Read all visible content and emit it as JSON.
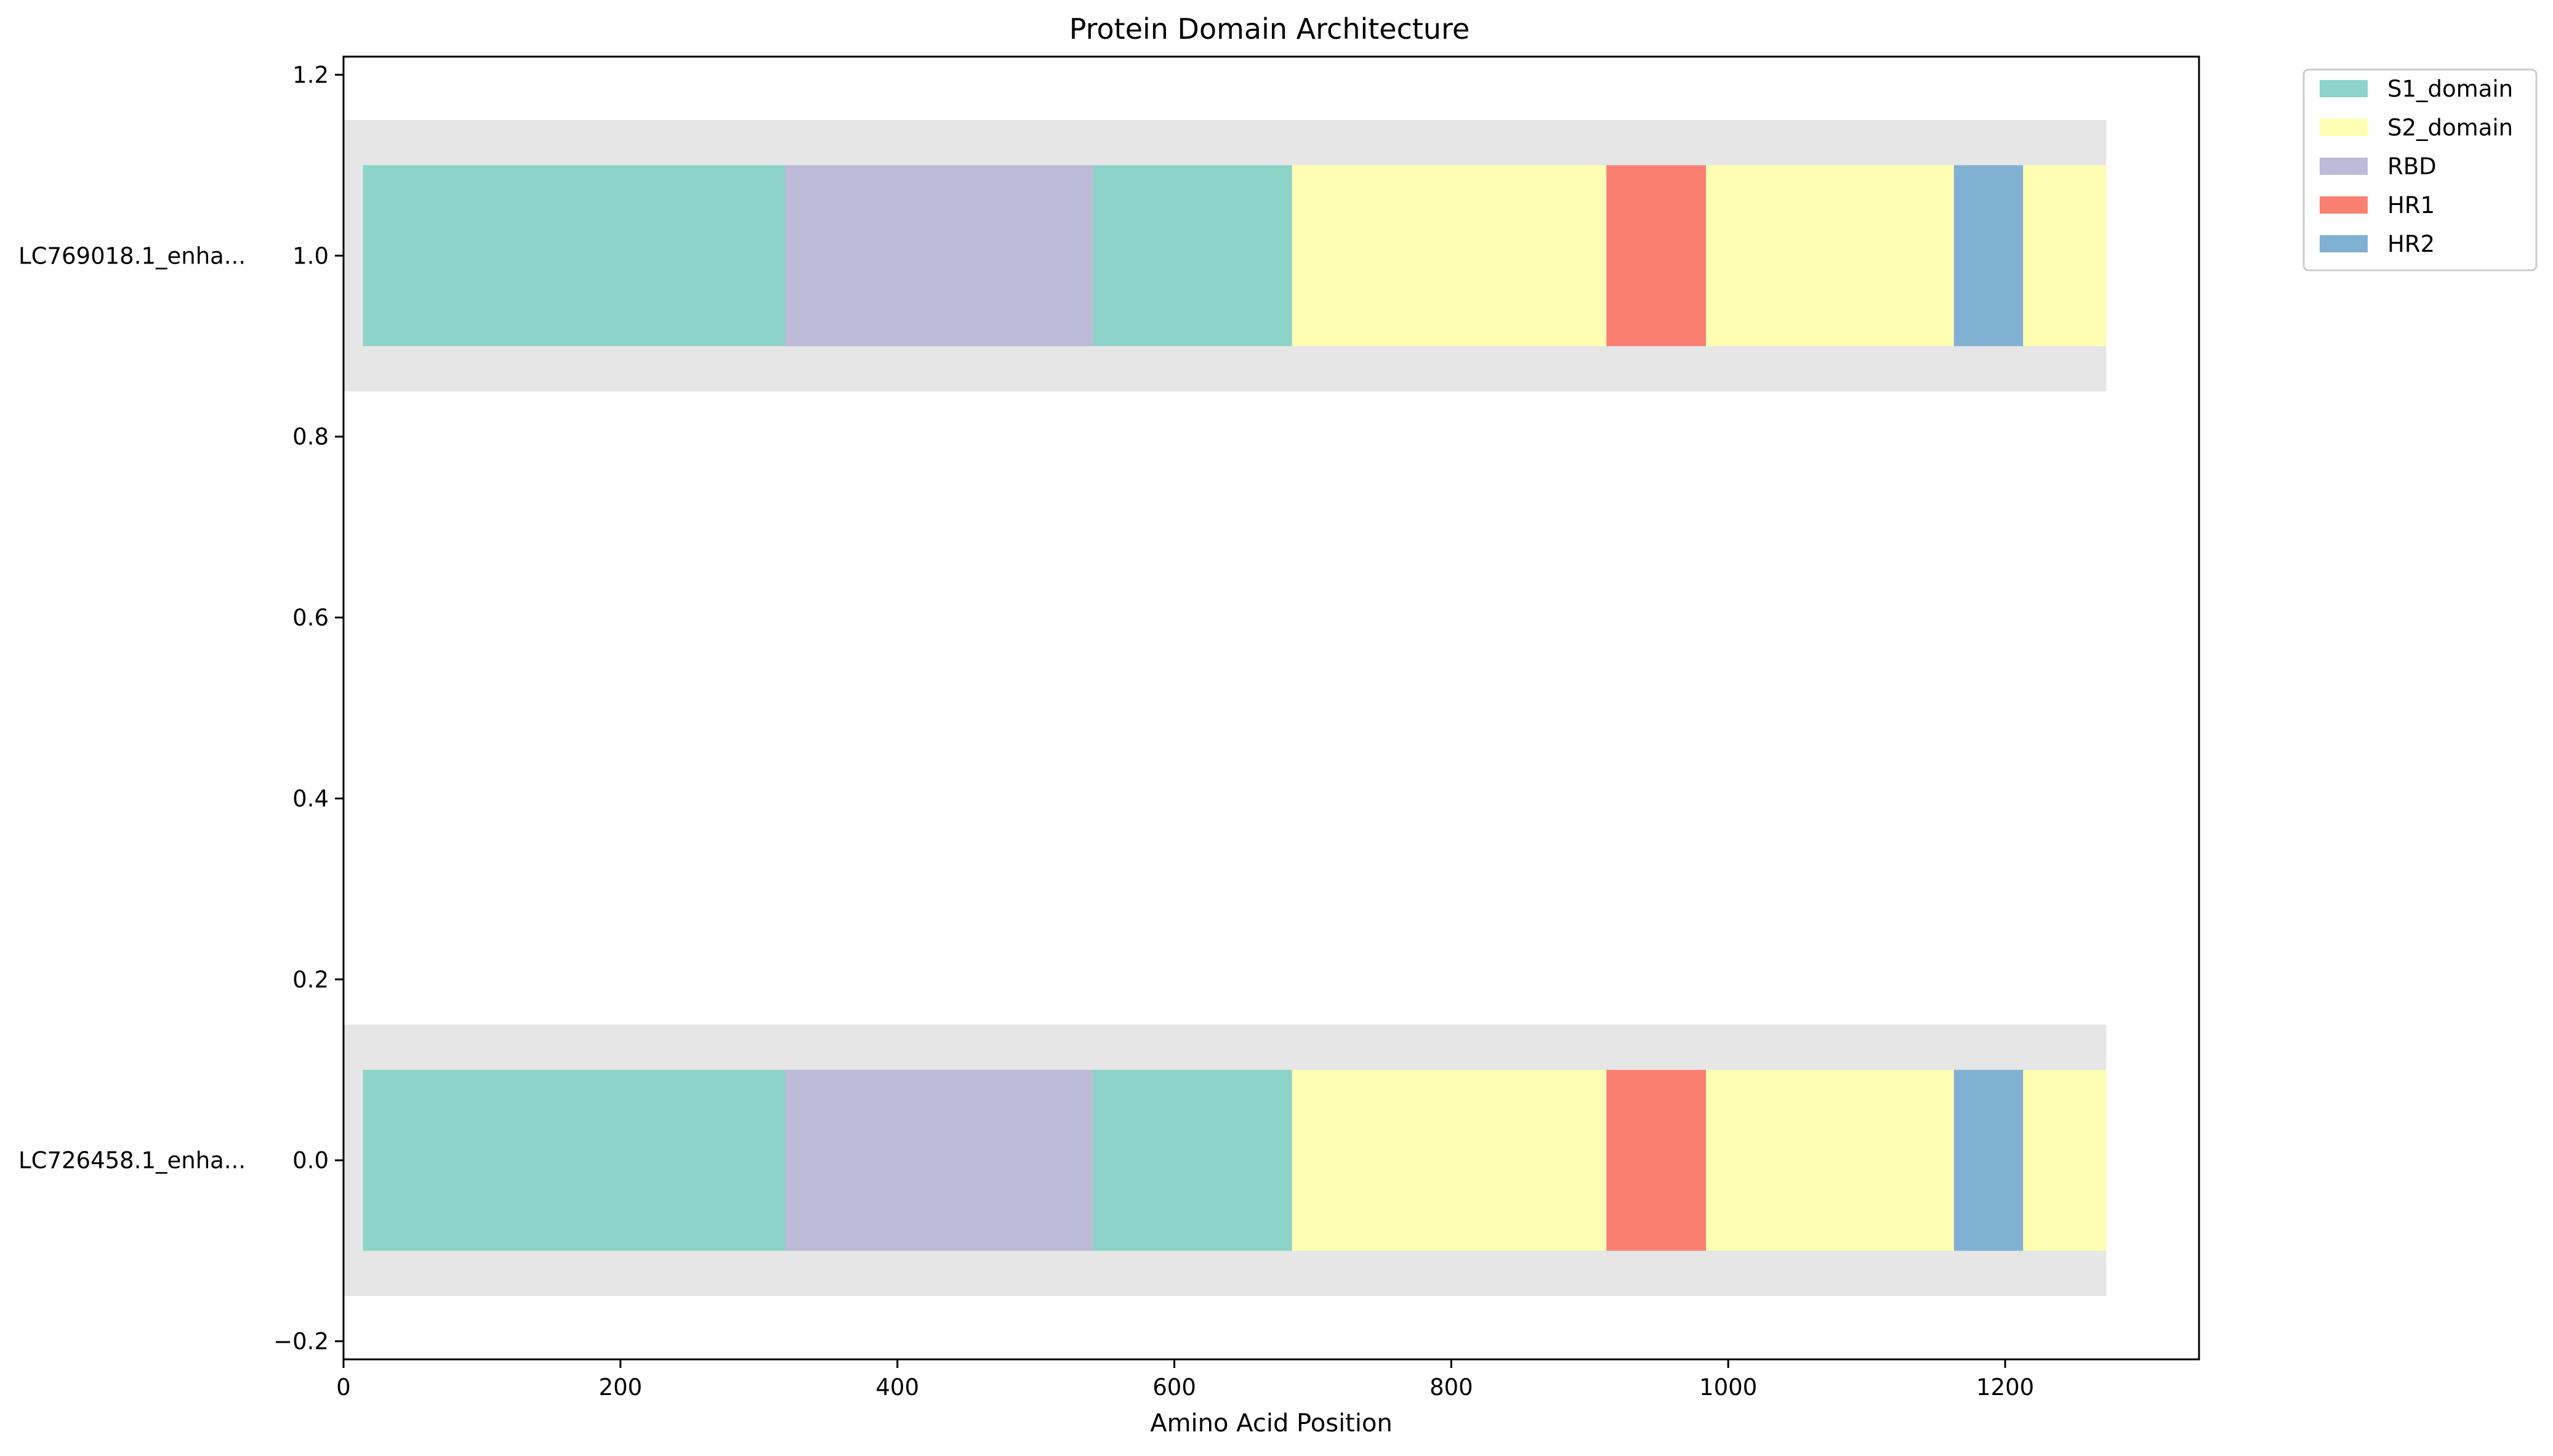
{
  "chart_data": {
    "type": "bar",
    "orientation": "horizontal-segments",
    "title": "Protein Domain Architecture",
    "xlabel": "Amino Acid Position",
    "ylabel": "",
    "xlim": [
      0,
      1340
    ],
    "ylim": [
      -0.22,
      1.22
    ],
    "xticks": [
      0,
      200,
      400,
      600,
      800,
      1000,
      1200
    ],
    "yticks": [
      -0.2,
      0.0,
      0.2,
      0.4,
      0.6,
      0.8,
      1.0,
      1.2
    ],
    "ytick_labels": [
      "−0.2",
      "0.0",
      "0.2",
      "0.4",
      "0.6",
      "0.8",
      "1.0",
      "1.2"
    ],
    "legend_position": "upper-right-outside",
    "grid": false,
    "background_color": "#e6e6e6",
    "categories": [
      {
        "label": "LC726458.1_enha...",
        "y": 0.0,
        "length": 1273
      },
      {
        "label": "LC769018.1_enha...",
        "y": 1.0,
        "length": 1273
      }
    ],
    "background_band_height": 0.3,
    "domain_band_height": 0.2,
    "domain_types": [
      {
        "name": "S1_domain",
        "color": "#8dd3c7"
      },
      {
        "name": "S2_domain",
        "color": "#ffffb3"
      },
      {
        "name": "RBD",
        "color": "#bebada"
      },
      {
        "name": "HR1",
        "color": "#fb8072"
      },
      {
        "name": "HR2",
        "color": "#80b1d3"
      }
    ],
    "segments": [
      {
        "type": "S1_domain",
        "start": 14,
        "end": 319
      },
      {
        "type": "RBD",
        "start": 319,
        "end": 541
      },
      {
        "type": "S1_domain",
        "start": 541,
        "end": 685
      },
      {
        "type": "S2_domain",
        "start": 685,
        "end": 912
      },
      {
        "type": "HR1",
        "start": 912,
        "end": 984
      },
      {
        "type": "S2_domain",
        "start": 984,
        "end": 1163
      },
      {
        "type": "HR2",
        "start": 1163,
        "end": 1213
      },
      {
        "type": "S2_domain",
        "start": 1213,
        "end": 1273
      }
    ]
  }
}
